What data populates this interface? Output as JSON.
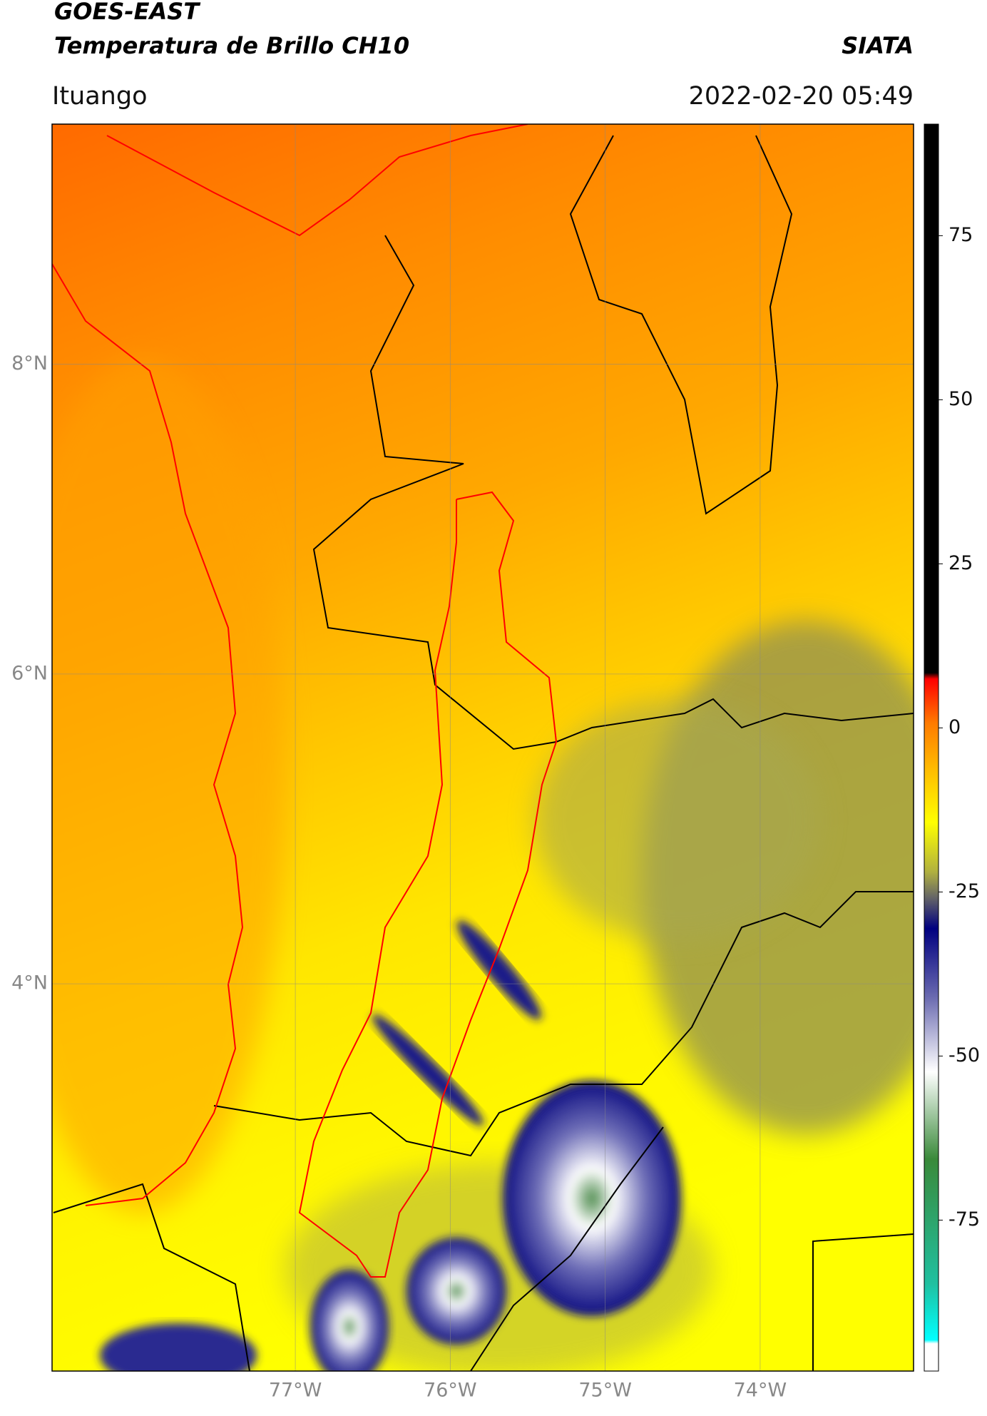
{
  "header": {
    "satellite": "GOES-EAST",
    "product": "Temperatura de Brillo CH10",
    "agency": "SIATA",
    "location": "Ituango",
    "datetime": "2022-02-20 05:49"
  },
  "map": {
    "lonlim": [
      -78.57,
      -73.01
    ],
    "latlim": [
      1.5,
      9.55
    ],
    "lon_ticks": [
      {
        "value": -77,
        "label": "77°W"
      },
      {
        "value": -76,
        "label": "76°W"
      },
      {
        "value": -75,
        "label": "75°W"
      },
      {
        "value": -74,
        "label": "74°W"
      }
    ],
    "lat_ticks": [
      {
        "value": 8,
        "label": "8°N"
      },
      {
        "value": 6,
        "label": "6°N"
      },
      {
        "value": 4,
        "label": "4°N"
      }
    ],
    "grid": true
  },
  "colorbar": {
    "lim": [
      -98,
      92
    ],
    "ticks": [
      75,
      50,
      25,
      0,
      -25,
      -50,
      -75
    ]
  }
}
